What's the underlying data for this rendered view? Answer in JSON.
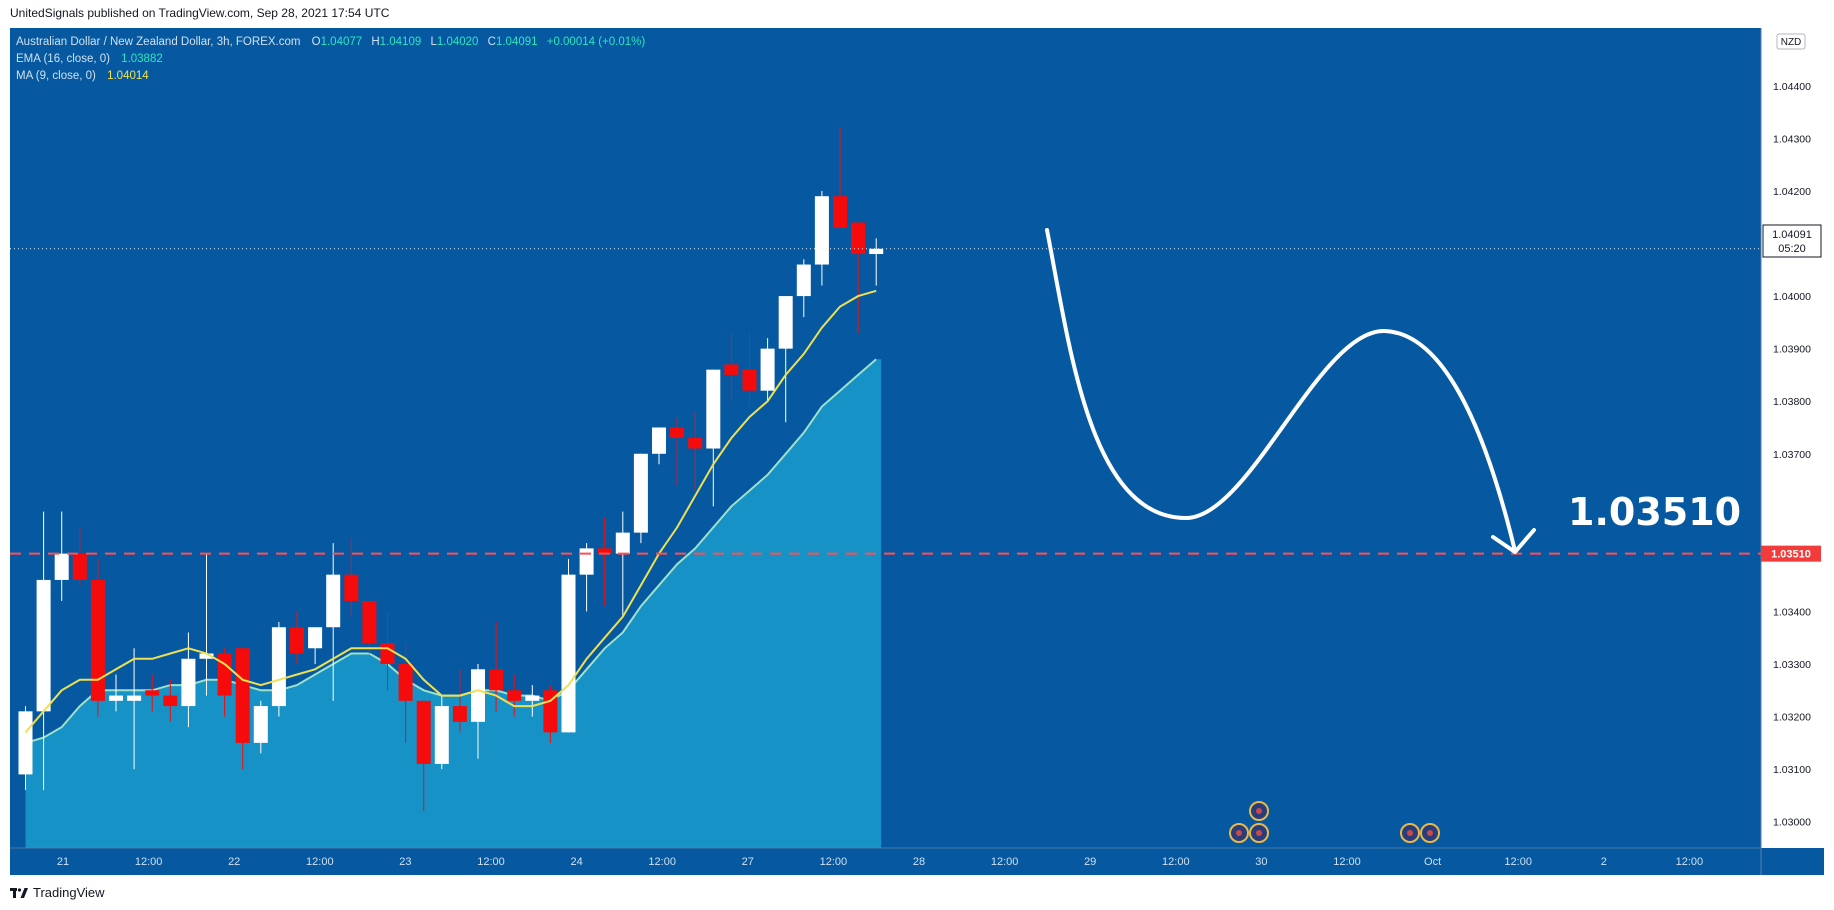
{
  "header": {
    "text": "UnitedSignals published on TradingView.com, Sep 28, 2021 17:54 UTC"
  },
  "footer": {
    "brand": "TradingView"
  },
  "legend": {
    "symbol": "Australian Dollar / New Zealand Dollar, 3h, FOREX.com",
    "ohlc": [
      {
        "k": "O",
        "v": "1.04077"
      },
      {
        "k": "H",
        "v": "1.04109"
      },
      {
        "k": "L",
        "v": "1.04020"
      },
      {
        "k": "C",
        "v": "1.04091"
      }
    ],
    "change": "+0.00014 (+0.01%)",
    "ema_label": "EMA (16, close, 0)",
    "ema_value": "1.03882",
    "ma_label": "MA (9, close, 0)",
    "ma_value": "1.04014"
  },
  "currency": "NZD",
  "last_price": {
    "value": "1.04091",
    "countdown": "05:20"
  },
  "level": {
    "value": 1.0351,
    "label": "1.03510",
    "annotation": "1.03510"
  },
  "colors": {
    "background": "#0659a0",
    "up": "#ffffff",
    "down": "#f50b0b",
    "ema_line": "#9fe0c8",
    "ema_fill": "#1a9ccc",
    "ma_line": "#f0e050",
    "level": "#ff4f4f",
    "text": "#cfe0f0"
  },
  "chart_data": {
    "type": "candlestick",
    "ylim": [
      1.0295,
      1.0451
    ],
    "y_ticks": [
      "1.03000",
      "1.03100",
      "1.03200",
      "1.03300",
      "1.03400",
      "1.03700",
      "1.03800",
      "1.03900",
      "1.04000",
      "1.04200",
      "1.04300",
      "1.04400"
    ],
    "x_ticks": [
      "21",
      "12:00",
      "22",
      "12:00",
      "23",
      "12:00",
      "24",
      "12:00",
      "27",
      "12:00",
      "28",
      "12:00",
      "29",
      "12:00",
      "30",
      "12:00",
      "Oct",
      "12:00",
      "2",
      "12:00"
    ],
    "candles": [
      {
        "o": 1.0309,
        "h": 1.0322,
        "l": 1.0306,
        "c": 1.0321
      },
      {
        "o": 1.0321,
        "h": 1.0359,
        "l": 1.0306,
        "c": 1.0346
      },
      {
        "o": 1.0346,
        "h": 1.0359,
        "l": 1.0342,
        "c": 1.0351
      },
      {
        "o": 1.0351,
        "h": 1.0356,
        "l": 1.0345,
        "c": 1.0346
      },
      {
        "o": 1.0346,
        "h": 1.035,
        "l": 1.032,
        "c": 1.0323
      },
      {
        "o": 1.0323,
        "h": 1.0328,
        "l": 1.0321,
        "c": 1.0324
      },
      {
        "o": 1.0323,
        "h": 1.0333,
        "l": 1.031,
        "c": 1.0324
      },
      {
        "o": 1.0325,
        "h": 1.0328,
        "l": 1.0321,
        "c": 1.0324
      },
      {
        "o": 1.0324,
        "h": 1.0327,
        "l": 1.0319,
        "c": 1.0322
      },
      {
        "o": 1.0322,
        "h": 1.0336,
        "l": 1.0318,
        "c": 1.0331
      },
      {
        "o": 1.0331,
        "h": 1.0351,
        "l": 1.0324,
        "c": 1.0332
      },
      {
        "o": 1.0332,
        "h": 1.0333,
        "l": 1.032,
        "c": 1.0324
      },
      {
        "o": 1.0333,
        "h": 1.0333,
        "l": 1.031,
        "c": 1.0315
      },
      {
        "o": 1.0315,
        "h": 1.0323,
        "l": 1.0313,
        "c": 1.0322
      },
      {
        "o": 1.0322,
        "h": 1.0338,
        "l": 1.032,
        "c": 1.0337
      },
      {
        "o": 1.0337,
        "h": 1.034,
        "l": 1.033,
        "c": 1.0332
      },
      {
        "o": 1.0333,
        "h": 1.0337,
        "l": 1.033,
        "c": 1.0337
      },
      {
        "o": 1.0337,
        "h": 1.0353,
        "l": 1.0323,
        "c": 1.0347
      },
      {
        "o": 1.0347,
        "h": 1.0354,
        "l": 1.0339,
        "c": 1.0342
      },
      {
        "o": 1.0342,
        "h": 1.0342,
        "l": 1.0332,
        "c": 1.0334
      },
      {
        "o": 1.0334,
        "h": 1.034,
        "l": 1.0325,
        "c": 1.033
      },
      {
        "o": 1.033,
        "h": 1.0334,
        "l": 1.0315,
        "c": 1.0323
      },
      {
        "o": 1.0323,
        "h": 1.0323,
        "l": 1.0302,
        "c": 1.0311
      },
      {
        "o": 1.0311,
        "h": 1.0324,
        "l": 1.031,
        "c": 1.0322
      },
      {
        "o": 1.0322,
        "h": 1.0329,
        "l": 1.0317,
        "c": 1.0319
      },
      {
        "o": 1.0319,
        "h": 1.033,
        "l": 1.0312,
        "c": 1.0329
      },
      {
        "o": 1.0329,
        "h": 1.0338,
        "l": 1.0321,
        "c": 1.0325
      },
      {
        "o": 1.0325,
        "h": 1.0328,
        "l": 1.032,
        "c": 1.0323
      },
      {
        "o": 1.0323,
        "h": 1.0326,
        "l": 1.032,
        "c": 1.0324
      },
      {
        "o": 1.0325,
        "h": 1.0326,
        "l": 1.0315,
        "c": 1.0317
      },
      {
        "o": 1.0317,
        "h": 1.035,
        "l": 1.0317,
        "c": 1.0347
      },
      {
        "o": 1.0347,
        "h": 1.0353,
        "l": 1.034,
        "c": 1.0352
      },
      {
        "o": 1.0352,
        "h": 1.0358,
        "l": 1.0341,
        "c": 1.0351
      },
      {
        "o": 1.0351,
        "h": 1.0359,
        "l": 1.0339,
        "c": 1.0355
      },
      {
        "o": 1.0355,
        "h": 1.037,
        "l": 1.0353,
        "c": 1.037
      },
      {
        "o": 1.037,
        "h": 1.0375,
        "l": 1.0368,
        "c": 1.0375
      },
      {
        "o": 1.0375,
        "h": 1.0377,
        "l": 1.0364,
        "c": 1.0373
      },
      {
        "o": 1.0373,
        "h": 1.0378,
        "l": 1.0363,
        "c": 1.0371
      },
      {
        "o": 1.0371,
        "h": 1.0386,
        "l": 1.036,
        "c": 1.0386
      },
      {
        "o": 1.0387,
        "h": 1.0393,
        "l": 1.038,
        "c": 1.0385
      },
      {
        "o": 1.0386,
        "h": 1.0393,
        "l": 1.0379,
        "c": 1.0382
      },
      {
        "o": 1.0382,
        "h": 1.0392,
        "l": 1.038,
        "c": 1.039
      },
      {
        "o": 1.039,
        "h": 1.04,
        "l": 1.0376,
        "c": 1.04
      },
      {
        "o": 1.04,
        "h": 1.0407,
        "l": 1.0396,
        "c": 1.0406
      },
      {
        "o": 1.0406,
        "h": 1.042,
        "l": 1.0402,
        "c": 1.0419
      },
      {
        "o": 1.0419,
        "h": 1.0432,
        "l": 1.0413,
        "c": 1.0413
      },
      {
        "o": 1.0414,
        "h": 1.0414,
        "l": 1.0393,
        "c": 1.0408
      },
      {
        "o": 1.0408,
        "h": 1.0411,
        "l": 1.0402,
        "c": 1.0409
      }
    ],
    "ema_16": [
      1.0315,
      1.0316,
      1.0318,
      1.0322,
      1.0325,
      1.0325,
      1.0325,
      1.0325,
      1.0326,
      1.0326,
      1.0327,
      1.0327,
      1.0326,
      1.0325,
      1.0325,
      1.0326,
      1.0328,
      1.033,
      1.0332,
      1.0332,
      1.033,
      1.0327,
      1.0325,
      1.0324,
      1.0324,
      1.0325,
      1.0325,
      1.0324,
      1.0324,
      1.0323,
      1.0325,
      1.0329,
      1.0333,
      1.0336,
      1.0341,
      1.0345,
      1.0349,
      1.0352,
      1.0356,
      1.036,
      1.0363,
      1.0366,
      1.037,
      1.0374,
      1.0379,
      1.0382,
      1.0385,
      1.0388
    ],
    "ma_9": [
      1.0317,
      1.0321,
      1.0325,
      1.0327,
      1.0327,
      1.0329,
      1.0331,
      1.0331,
      1.0332,
      1.0333,
      1.0332,
      1.033,
      1.0327,
      1.0326,
      1.0327,
      1.0328,
      1.0329,
      1.0331,
      1.0333,
      1.0333,
      1.0333,
      1.0331,
      1.0327,
      1.0324,
      1.0324,
      1.0325,
      1.0324,
      1.0322,
      1.0322,
      1.0323,
      1.0326,
      1.0331,
      1.0335,
      1.0339,
      1.0345,
      1.0351,
      1.0356,
      1.0362,
      1.0368,
      1.0373,
      1.0377,
      1.038,
      1.0385,
      1.0389,
      1.0394,
      1.0398,
      1.04,
      1.0401
    ]
  }
}
